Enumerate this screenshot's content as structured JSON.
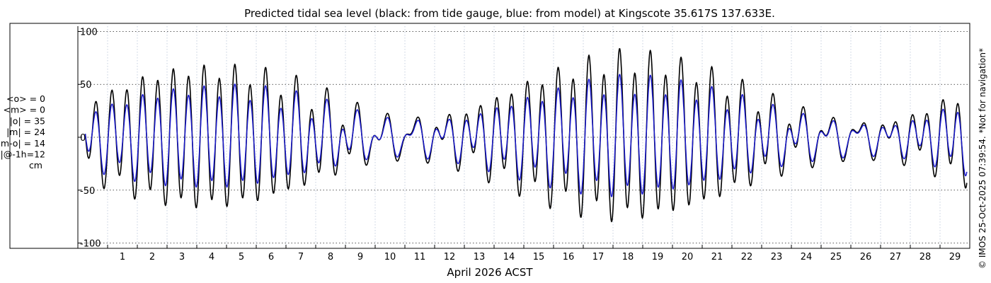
{
  "chart_data": {
    "type": "line",
    "title": "Predicted tidal sea level (black: from tide gauge, blue: from model) at Kingscote 35.617S 137.633E.",
    "xlabel": "April 2026 ACST",
    "ylabel": "",
    "xlim": [
      0,
      30
    ],
    "ylim": [
      -105,
      105
    ],
    "x_ticks": [
      1,
      2,
      3,
      4,
      5,
      6,
      7,
      8,
      9,
      10,
      11,
      12,
      13,
      14,
      15,
      16,
      17,
      18,
      19,
      20,
      21,
      22,
      23,
      24,
      25,
      26,
      27,
      28,
      29
    ],
    "y_ticks": [
      -100,
      -50,
      0,
      50,
      100
    ],
    "grid": true,
    "stats": [
      "<o> = 0",
      "<m> = 0",
      "|o| = 35",
      "|m| = 24",
      "|m-o| = 14",
      "|m-o|@-1h=12",
      "cm"
    ],
    "side_note": "© IMOS 25-Oct-2025 07:39:54. *Not for navigation*",
    "series": [
      {
        "color": "#000000",
        "amplitude_envelope": {
          "x": [
            0.25,
            1,
            2,
            3,
            4,
            5,
            6,
            7,
            8,
            9,
            10,
            11,
            12,
            13,
            14,
            15,
            16,
            17,
            18,
            19,
            20,
            21,
            22,
            23,
            24,
            25,
            26,
            27,
            28,
            29,
            29.9
          ],
          "semidiurnal": [
            30,
            40,
            52,
            60,
            63,
            62,
            58,
            50,
            38,
            24,
            12,
            8,
            12,
            22,
            35,
            48,
            58,
            66,
            72,
            72,
            68,
            60,
            48,
            34,
            22,
            12,
            8,
            10,
            18,
            30,
            40
          ],
          "diurnal": [
            12,
            10,
            8,
            6,
            6,
            8,
            10,
            12,
            14,
            16,
            16,
            16,
            14,
            12,
            10,
            10,
            12,
            14,
            14,
            12,
            10,
            10,
            12,
            14,
            16,
            16,
            14,
            12,
            10,
            10,
            10
          ]
        }
      },
      {
        "color": "#1a1acc",
        "amplitude_envelope": {
          "x": [
            0.25,
            1,
            2,
            3,
            4,
            5,
            6,
            7,
            8,
            9,
            10,
            11,
            12,
            13,
            14,
            15,
            16,
            17,
            18,
            19,
            20,
            21,
            22,
            23,
            24,
            25,
            26,
            27,
            28,
            29,
            29.9
          ],
          "semidiurnal": [
            22,
            28,
            36,
            42,
            44,
            44,
            42,
            36,
            28,
            18,
            10,
            7,
            10,
            16,
            26,
            34,
            40,
            46,
            50,
            50,
            48,
            42,
            34,
            25,
            16,
            10,
            7,
            8,
            13,
            22,
            30
          ],
          "diurnal": [
            10,
            8,
            7,
            5,
            5,
            7,
            8,
            10,
            12,
            13,
            13,
            13,
            12,
            10,
            8,
            8,
            10,
            11,
            11,
            10,
            8,
            8,
            10,
            11,
            13,
            13,
            12,
            10,
            8,
            8,
            8
          ]
        }
      }
    ]
  }
}
